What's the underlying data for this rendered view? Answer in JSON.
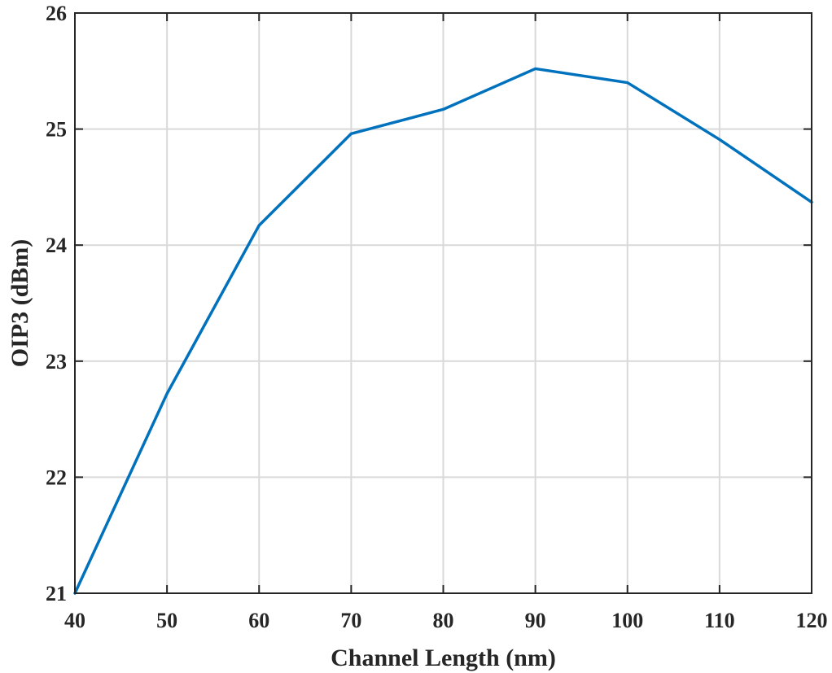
{
  "chart_data": {
    "type": "line",
    "title": "",
    "xlabel": "Channel Length (nm)",
    "ylabel": "OIP3 (dBm)",
    "xlim": [
      40,
      120
    ],
    "ylim": [
      21,
      26
    ],
    "xticks": [
      40,
      50,
      60,
      70,
      80,
      90,
      100,
      110,
      120
    ],
    "yticks": [
      21,
      22,
      23,
      24,
      25,
      26
    ],
    "grid": true,
    "legend": "none",
    "colors": {
      "series": "#0072BD",
      "axes": "#262626",
      "grid": "#d9d9d9"
    },
    "series": [
      {
        "x": [
          40,
          50,
          60,
          70,
          80,
          90,
          100,
          110,
          120
        ],
        "y": [
          21.0,
          22.72,
          24.17,
          24.96,
          25.17,
          25.52,
          25.4,
          24.91,
          24.37
        ]
      }
    ]
  }
}
